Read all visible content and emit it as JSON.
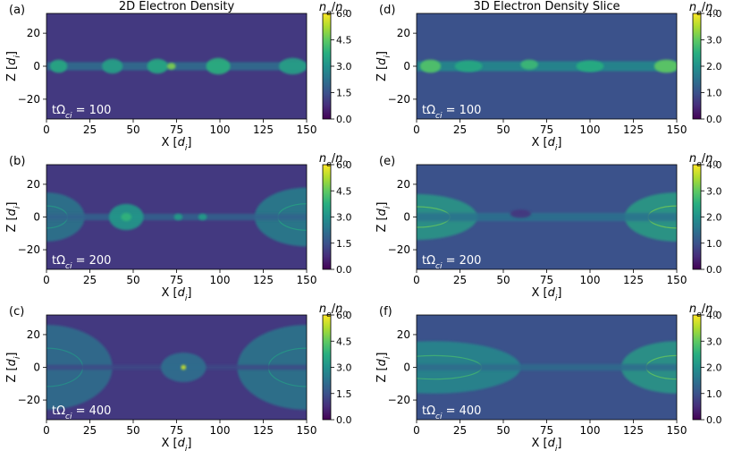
{
  "chart_data": [
    {
      "type": "heatmap",
      "panel_label": "(a)",
      "title": "2D Electron Density",
      "xlabel": "X [d_i]",
      "ylabel": "Z [d_i]",
      "xlim": [
        0,
        150
      ],
      "ylim": [
        -32,
        32
      ],
      "xticks": [
        "0",
        "25",
        "50",
        "75",
        "100",
        "125",
        "150"
      ],
      "xtick_values": [
        0,
        25,
        50,
        75,
        100,
        125,
        150
      ],
      "yticks": [
        "20",
        "0",
        "−20"
      ],
      "ytick_values": [
        20,
        0,
        -20
      ],
      "colorbar": {
        "label": "n_e/n_0",
        "range": [
          0,
          6
        ],
        "ticks": [
          "6.0",
          "4.5",
          "3.0",
          "1.5",
          "0.0"
        ],
        "tick_values": [
          6,
          4.5,
          3,
          1.5,
          0
        ]
      },
      "annotation": "tΩ_ci = 100",
      "features": {
        "sheet_halfwidth": 2.5,
        "background_level": 1.0,
        "sheet_level": 2.2,
        "islands": [
          {
            "x": 7,
            "z": 0,
            "rx": 5,
            "rz": 4,
            "level": 3.6
          },
          {
            "x": 38,
            "z": 0,
            "rx": 6,
            "rz": 4.5,
            "level": 3.4
          },
          {
            "x": 64,
            "z": 0,
            "rx": 6,
            "rz": 4.5,
            "level": 3.6
          },
          {
            "x": 72,
            "z": 0,
            "rx": 2.5,
            "rz": 2,
            "level": 4.8
          },
          {
            "x": 99,
            "z": 0,
            "rx": 7,
            "rz": 5,
            "level": 3.8
          },
          {
            "x": 142,
            "z": 0,
            "rx": 8,
            "rz": 5,
            "level": 3.4
          }
        ],
        "outer_lobes": []
      }
    },
    {
      "type": "heatmap",
      "panel_label": "(d)",
      "title": "3D Electron Density Slice",
      "xlabel": "X [d_i]",
      "ylabel": "Z [d_i]",
      "xlim": [
        0,
        150
      ],
      "ylim": [
        -32,
        32
      ],
      "xticks": [
        "0",
        "25",
        "50",
        "75",
        "100",
        "125",
        "150"
      ],
      "xtick_values": [
        0,
        25,
        50,
        75,
        100,
        125,
        150
      ],
      "yticks": [
        "20",
        "0",
        "−20"
      ],
      "ytick_values": [
        20,
        0,
        -20
      ],
      "colorbar": {
        "label": "n_e/n_0",
        "range": [
          0,
          4
        ],
        "ticks": [
          "4.0",
          "3.0",
          "2.0",
          "1.0",
          "0.0"
        ],
        "tick_values": [
          4,
          3,
          2,
          1,
          0
        ]
      },
      "annotation": "tΩ_ci = 100",
      "features": {
        "sheet_halfwidth": 3,
        "background_level": 1.0,
        "sheet_level": 1.9,
        "islands": [
          {
            "x": 8,
            "z": 0,
            "rx": 6,
            "rz": 4,
            "level": 2.9
          },
          {
            "x": 30,
            "z": 0,
            "rx": 8,
            "rz": 3.5,
            "level": 2.4
          },
          {
            "x": 65,
            "z": 1,
            "rx": 5,
            "rz": 3,
            "level": 2.7
          },
          {
            "x": 100,
            "z": 0,
            "rx": 8,
            "rz": 3.5,
            "level": 2.5
          },
          {
            "x": 144,
            "z": 0,
            "rx": 7,
            "rz": 4,
            "level": 3.0
          }
        ],
        "outer_lobes": []
      }
    },
    {
      "type": "heatmap",
      "panel_label": "(b)",
      "xlabel": "X [d_i]",
      "ylabel": "Z [d_i]",
      "xlim": [
        0,
        150
      ],
      "ylim": [
        -32,
        32
      ],
      "xticks": [
        "0",
        "25",
        "50",
        "75",
        "100",
        "125",
        "150"
      ],
      "xtick_values": [
        0,
        25,
        50,
        75,
        100,
        125,
        150
      ],
      "yticks": [
        "20",
        "0",
        "−20"
      ],
      "ytick_values": [
        20,
        0,
        -20
      ],
      "colorbar": {
        "label": "n_e/n_0",
        "range": [
          0,
          6
        ],
        "ticks": [
          "6.0",
          "4.5",
          "3.0",
          "1.5",
          "0.0"
        ],
        "tick_values": [
          6,
          4.5,
          3,
          1.5,
          0
        ]
      },
      "annotation": "tΩ_ci = 200",
      "features": {
        "sheet_halfwidth": 2,
        "background_level": 1.0,
        "sheet_level": 1.9,
        "islands": [
          {
            "x": 46,
            "z": 0,
            "rx": 10,
            "rz": 8,
            "level": 3.2
          },
          {
            "x": 46,
            "z": 0,
            "rx": 3,
            "rz": 2.5,
            "level": 3.9
          },
          {
            "x": 76,
            "z": 0,
            "rx": 2.5,
            "rz": 2,
            "level": 3.3
          },
          {
            "x": 90,
            "z": 0,
            "rx": 2.5,
            "rz": 2,
            "level": 3.3
          }
        ],
        "outer_lobes": [
          {
            "x": 0,
            "rx": 22,
            "rz": 15,
            "level": 2.6
          },
          {
            "x": 150,
            "rx": 30,
            "rz": 18,
            "level": 2.8
          }
        ]
      }
    },
    {
      "type": "heatmap",
      "panel_label": "(e)",
      "xlabel": "X [d_i]",
      "ylabel": "Z [d_i]",
      "xlim": [
        0,
        150
      ],
      "ylim": [
        -32,
        32
      ],
      "xticks": [
        "0",
        "25",
        "50",
        "75",
        "100",
        "125",
        "150"
      ],
      "xtick_values": [
        0,
        25,
        50,
        75,
        100,
        125,
        150
      ],
      "yticks": [
        "20",
        "0",
        "−20"
      ],
      "ytick_values": [
        20,
        0,
        -20
      ],
      "colorbar": {
        "label": "n_e/n_0",
        "range": [
          0,
          4
        ],
        "ticks": [
          "4.0",
          "3.0",
          "2.0",
          "1.0",
          "0.0"
        ],
        "tick_values": [
          4,
          3,
          2,
          1,
          0
        ]
      },
      "annotation": "tΩ_ci = 200",
      "features": {
        "sheet_halfwidth": 2.5,
        "background_level": 1.0,
        "sheet_level": 1.5,
        "islands": [
          {
            "x": 60,
            "z": 2,
            "rx": 6,
            "rz": 2.5,
            "level": 0.6
          }
        ],
        "outer_lobes": [
          {
            "x": 0,
            "rx": 35,
            "rz": 14,
            "level": 2.3
          },
          {
            "x": 150,
            "rx": 30,
            "rz": 15,
            "level": 2.4
          }
        ]
      }
    },
    {
      "type": "heatmap",
      "panel_label": "(c)",
      "xlabel": "X [d_i]",
      "ylabel": "Z [d_i]",
      "xlim": [
        0,
        150
      ],
      "ylim": [
        -32,
        32
      ],
      "xticks": [
        "0",
        "25",
        "50",
        "75",
        "100",
        "125",
        "150"
      ],
      "xtick_values": [
        0,
        25,
        50,
        75,
        100,
        125,
        150
      ],
      "yticks": [
        "20",
        "0",
        "−20"
      ],
      "ytick_values": [
        20,
        0,
        -20
      ],
      "colorbar": {
        "label": "n_e/n_0",
        "range": [
          0,
          6
        ],
        "ticks": [
          "6.0",
          "4.5",
          "3.0",
          "1.5",
          "0.0"
        ],
        "tick_values": [
          6,
          4.5,
          3,
          1.5,
          0
        ]
      },
      "annotation": "tΩ_ci = 400",
      "features": {
        "sheet_halfwidth": 1.5,
        "background_level": 1.0,
        "sheet_level": 1.3,
        "islands": [
          {
            "x": 79,
            "z": 0,
            "rx": 13,
            "rz": 9,
            "level": 2.2
          },
          {
            "x": 79,
            "z": 0,
            "rx": 1.5,
            "rz": 1.5,
            "level": 5.5
          }
        ],
        "outer_lobes": [
          {
            "x": 0,
            "rx": 38,
            "rz": 26,
            "level": 2.4
          },
          {
            "x": 150,
            "rx": 40,
            "rz": 26,
            "level": 2.6
          }
        ]
      }
    },
    {
      "type": "heatmap",
      "panel_label": "(f)",
      "xlabel": "X [d_i]",
      "ylabel": "Z [d_i]",
      "xlim": [
        0,
        150
      ],
      "ylim": [
        -32,
        32
      ],
      "xticks": [
        "0",
        "25",
        "50",
        "75",
        "100",
        "125",
        "150"
      ],
      "xtick_values": [
        0,
        25,
        50,
        75,
        100,
        125,
        150
      ],
      "yticks": [
        "20",
        "0",
        "−20"
      ],
      "ytick_values": [
        20,
        0,
        -20
      ],
      "colorbar": {
        "label": "n_e/n_0",
        "range": [
          0,
          4
        ],
        "ticks": [
          "4.0",
          "3.0",
          "2.0",
          "1.0",
          "0.0"
        ],
        "tick_values": [
          4,
          3,
          2,
          1,
          0
        ]
      },
      "annotation": "tΩ_ci = 400",
      "features": {
        "sheet_halfwidth": 2,
        "background_level": 1.0,
        "sheet_level": 1.4,
        "islands": [],
        "outer_lobes": [
          {
            "x": 10,
            "rx": 50,
            "rz": 16,
            "level": 2.0
          },
          {
            "x": 150,
            "rx": 32,
            "rz": 16,
            "level": 2.3
          }
        ]
      }
    }
  ]
}
